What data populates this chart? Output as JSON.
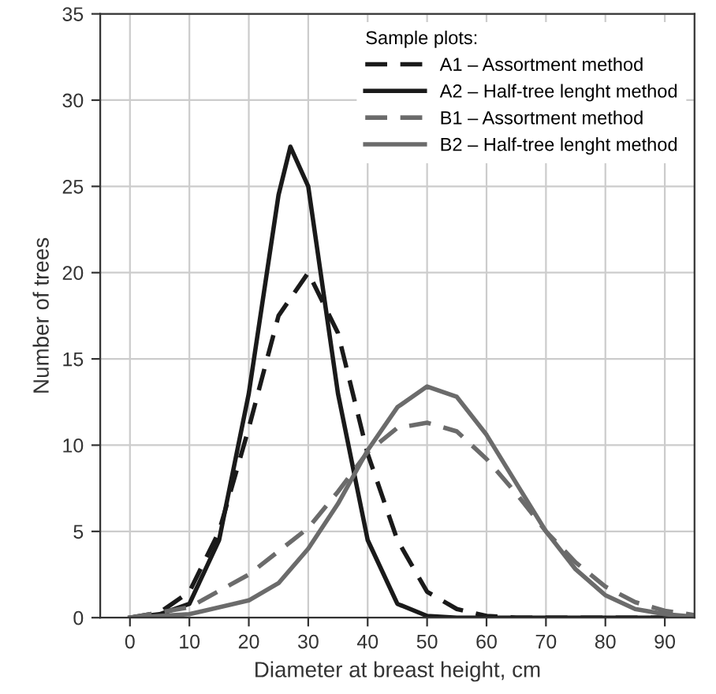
{
  "chart_data": {
    "type": "line",
    "xlabel": "Diameter at breast height, cm",
    "ylabel": "Number of trees",
    "legend_title": "Sample plots:",
    "legend": "top right",
    "grid": true,
    "xlim": [
      -5,
      95
    ],
    "ylim": [
      0,
      35
    ],
    "xticks": [
      0,
      10,
      20,
      30,
      40,
      50,
      60,
      70,
      80,
      90
    ],
    "yticks": [
      0,
      5,
      10,
      15,
      20,
      25,
      30,
      35
    ],
    "marker": "none",
    "series": [
      {
        "name": "A1 – Assortment method",
        "color": "#1a1a1a",
        "line_style": "dashed",
        "x": [
          0,
          5,
          10,
          15,
          20,
          25,
          30,
          35,
          40,
          45,
          50,
          55,
          60,
          65,
          95
        ],
        "values": [
          0,
          0.3,
          1.5,
          5,
          11,
          17.5,
          20,
          16.5,
          9.5,
          4.5,
          1.5,
          0.5,
          0.1,
          0,
          0
        ]
      },
      {
        "name": "A2 – Half-tree lenght method",
        "color": "#1a1a1a",
        "line_style": "solid",
        "x": [
          0,
          5,
          10,
          15,
          20,
          25,
          27,
          30,
          35,
          40,
          45,
          50,
          55,
          95
        ],
        "values": [
          0,
          0.2,
          0.8,
          4.5,
          13,
          24.5,
          27.3,
          25,
          13,
          4.5,
          0.8,
          0.1,
          0,
          0
        ]
      },
      {
        "name": "B1 – Assortment method",
        "color": "#6b6b6b",
        "line_style": "dashed",
        "x": [
          0,
          10,
          20,
          30,
          35,
          40,
          45,
          50,
          55,
          60,
          65,
          70,
          75,
          80,
          85,
          90,
          95
        ],
        "values": [
          0,
          0.6,
          2.5,
          5.2,
          7.3,
          9.6,
          11,
          11.3,
          10.8,
          9.2,
          7.2,
          5,
          3.2,
          1.8,
          0.9,
          0.4,
          0.15
        ]
      },
      {
        "name": "B2 – Half-tree lenght method",
        "color": "#6b6b6b",
        "line_style": "solid",
        "x": [
          0,
          10,
          20,
          25,
          30,
          35,
          40,
          45,
          50,
          55,
          60,
          65,
          70,
          75,
          80,
          85,
          90,
          95
        ],
        "values": [
          0,
          0.2,
          1,
          2,
          4,
          6.6,
          9.7,
          12.2,
          13.4,
          12.8,
          10.6,
          7.8,
          5,
          2.8,
          1.3,
          0.5,
          0.2,
          0.05
        ]
      }
    ]
  }
}
